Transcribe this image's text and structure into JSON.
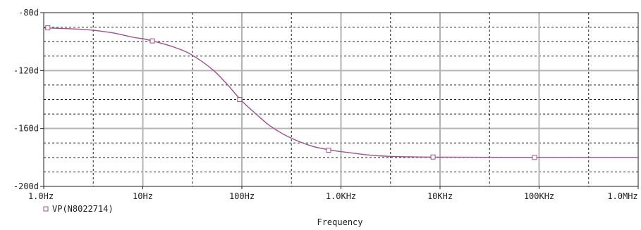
{
  "chart_data": {
    "type": "line",
    "x_scale": "log",
    "xlim": [
      1,
      1000000
    ],
    "ylim": [
      -200,
      -80
    ],
    "x_ticks": [
      {
        "x": 1,
        "label": "1.0Hz"
      },
      {
        "x": 10,
        "label": "10Hz"
      },
      {
        "x": 100,
        "label": "100Hz"
      },
      {
        "x": 1000,
        "label": "1.0KHz"
      },
      {
        "x": 10000,
        "label": "10KHz"
      },
      {
        "x": 100000,
        "label": "100KHz"
      },
      {
        "x": 1000000,
        "label": "1.0MHz"
      }
    ],
    "y_ticks": [
      {
        "y": -80,
        "label": "-80d"
      },
      {
        "y": -120,
        "label": "-120d"
      },
      {
        "y": -160,
        "label": "-160d"
      },
      {
        "y": -200,
        "label": "-200d"
      }
    ],
    "xlabel": "Frequency",
    "grid": true,
    "series": [
      {
        "name": "VP(N8022714)",
        "color": "#a0508c",
        "x": [
          1,
          2,
          3,
          5,
          8,
          10,
          13,
          20,
          30,
          50,
          70,
          100,
          150,
          200,
          300,
          500,
          800,
          1000,
          2000,
          3000,
          5000,
          10000,
          100000,
          1000000
        ],
        "y": [
          -90.5,
          -91.2,
          -92.0,
          -94.0,
          -97.0,
          -98.0,
          -99.8,
          -103.5,
          -108.5,
          -119.0,
          -129.0,
          -141.0,
          -152.0,
          -159.0,
          -166.0,
          -172.0,
          -175.0,
          -176.0,
          -178.5,
          -179.2,
          -179.6,
          -179.8,
          -179.98,
          -180.0
        ]
      }
    ],
    "markers": [
      {
        "x": 1.1,
        "y": -90.5
      },
      {
        "x": 12.5,
        "y": -99.5
      },
      {
        "x": 95,
        "y": -140
      },
      {
        "x": 750,
        "y": -175
      },
      {
        "x": 8500,
        "y": -179.7
      },
      {
        "x": 90000,
        "y": -180
      }
    ]
  },
  "legend": {
    "marker_icon": "square-marker-icon",
    "label": "VP(N8022714)"
  },
  "colors": {
    "grid_solid": "#b4b4b4",
    "grid_dotted": "#202020",
    "axis": "#202020",
    "text": "#202020",
    "series": "#a0508c"
  }
}
